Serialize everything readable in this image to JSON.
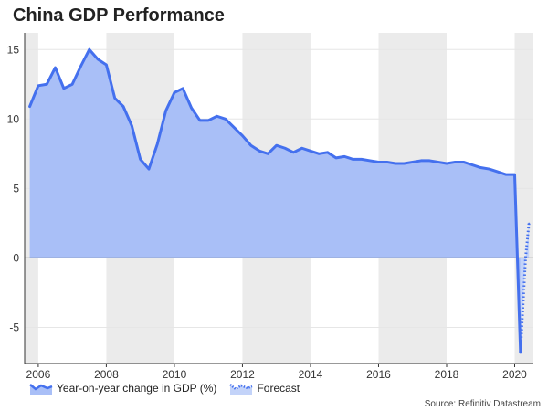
{
  "chart_data": {
    "type": "area",
    "title": "China GDP Performance",
    "xlabel": "",
    "ylabel": "",
    "xlim": [
      2005.6,
      2020.55
    ],
    "ylim": [
      -7.6,
      16.2
    ],
    "yticks": [
      15,
      10,
      5,
      0,
      -5
    ],
    "ytick_labels": [
      "15",
      "10",
      "5",
      "0",
      "-5"
    ],
    "xticks": [
      2006,
      2008,
      2010,
      2012,
      2014,
      2016,
      2018,
      2020
    ],
    "xtick_labels": [
      "2006",
      "2008",
      "2010",
      "2012",
      "2014",
      "2016",
      "2018",
      "2020"
    ],
    "shaded_bands": [
      [
        2005.6,
        2006.0
      ],
      [
        2008.0,
        2010.0
      ],
      [
        2012.0,
        2014.0
      ],
      [
        2016.0,
        2018.0
      ],
      [
        2020.0,
        2020.55
      ]
    ],
    "colors": {
      "line": "#4470ee",
      "fill": "#a9bff7",
      "band": "#ebebeb",
      "zero": "#555555"
    },
    "series": [
      {
        "name": "Year-on-year change in GDP (%)",
        "x": [
          2005.75,
          2006.0,
          2006.25,
          2006.5,
          2006.75,
          2007.0,
          2007.25,
          2007.5,
          2007.75,
          2008.0,
          2008.25,
          2008.5,
          2008.75,
          2009.0,
          2009.25,
          2009.5,
          2009.75,
          2010.0,
          2010.25,
          2010.5,
          2010.75,
          2011.0,
          2011.25,
          2011.5,
          2011.75,
          2012.0,
          2012.25,
          2012.5,
          2012.75,
          2013.0,
          2013.25,
          2013.5,
          2013.75,
          2014.0,
          2014.25,
          2014.5,
          2014.75,
          2015.0,
          2015.25,
          2015.5,
          2015.75,
          2016.0,
          2016.25,
          2016.5,
          2016.75,
          2017.0,
          2017.25,
          2017.5,
          2017.75,
          2018.0,
          2018.25,
          2018.5,
          2018.75,
          2019.0,
          2019.25,
          2019.5,
          2019.75,
          2020.0,
          2020.17
        ],
        "values": [
          10.9,
          12.4,
          12.5,
          13.7,
          12.2,
          12.5,
          13.8,
          15.0,
          14.3,
          13.9,
          11.5,
          10.9,
          9.5,
          7.1,
          6.4,
          8.2,
          10.6,
          11.9,
          12.2,
          10.8,
          9.9,
          9.9,
          10.2,
          10.0,
          9.4,
          8.8,
          8.1,
          7.7,
          7.5,
          8.1,
          7.9,
          7.6,
          7.9,
          7.7,
          7.5,
          7.6,
          7.2,
          7.3,
          7.1,
          7.1,
          7.0,
          6.9,
          6.9,
          6.8,
          6.8,
          6.9,
          7.0,
          7.0,
          6.9,
          6.8,
          6.9,
          6.9,
          6.7,
          6.5,
          6.4,
          6.2,
          6.0,
          6.0,
          -6.8
        ]
      },
      {
        "name": "Forecast",
        "x": [
          2020.17,
          2020.32,
          2020.42
        ],
        "values": [
          -6.8,
          0.0,
          2.5
        ]
      }
    ],
    "legend_position": "bottom-left",
    "source": "Source: Refinitiv Datastream"
  }
}
